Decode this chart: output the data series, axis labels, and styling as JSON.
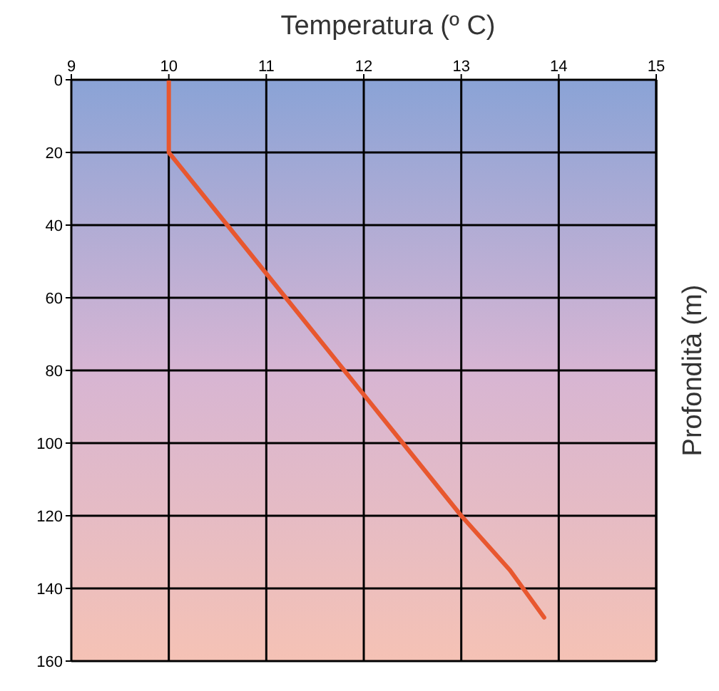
{
  "chart_data": {
    "type": "line",
    "xlabel": "Temperatura (º C)",
    "ylabel": "Profondità (m)",
    "series": [
      {
        "color": "#e8572f",
        "x": [
          10,
          10,
          10.3,
          10.6,
          11.2,
          11.8,
          12.4,
          13.0,
          13.5,
          13.85
        ],
        "values": [
          0,
          20,
          30,
          40,
          60,
          80,
          100,
          120,
          135,
          148
        ]
      }
    ],
    "xlim": [
      9,
      15
    ],
    "xticks": [
      9,
      10,
      11,
      12,
      13,
      14,
      15
    ],
    "ylim": [
      160,
      0
    ],
    "yticks": [
      0,
      20,
      40,
      60,
      80,
      100,
      120,
      140,
      160
    ],
    "grid": true,
    "marker": "none",
    "line_style": "solid"
  }
}
